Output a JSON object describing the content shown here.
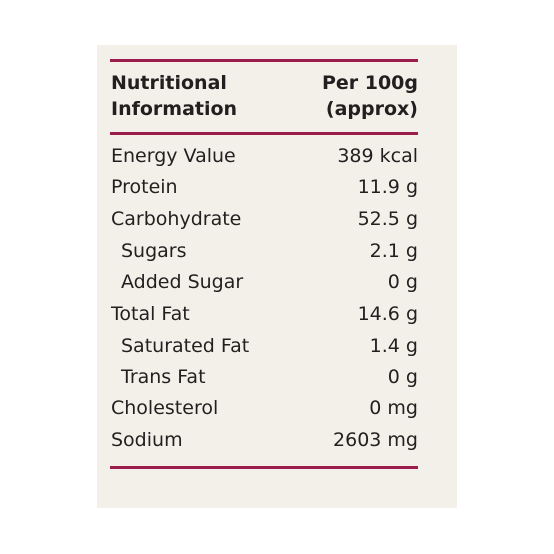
{
  "header": {
    "left": [
      "Nutritional",
      "Information"
    ],
    "right": [
      "Per 100g",
      "(approx)"
    ]
  },
  "table": {
    "rows": [
      [
        "Energy Value",
        "389 kcal"
      ],
      [
        "Protein",
        "11.9 g"
      ],
      [
        "Carbohydrate",
        "52.5 g"
      ],
      [
        "Sugars",
        "2.1 g"
      ],
      [
        "Added Sugar",
        "0 g"
      ],
      [
        "Total Fat",
        "14.6 g"
      ],
      [
        "Saturated Fat",
        "1.4 g"
      ],
      [
        "Trans Fat",
        "0 g"
      ],
      [
        "Cholesterol",
        "0 mg"
      ],
      [
        "Sodium",
        "2603 mg"
      ]
    ]
  }
}
